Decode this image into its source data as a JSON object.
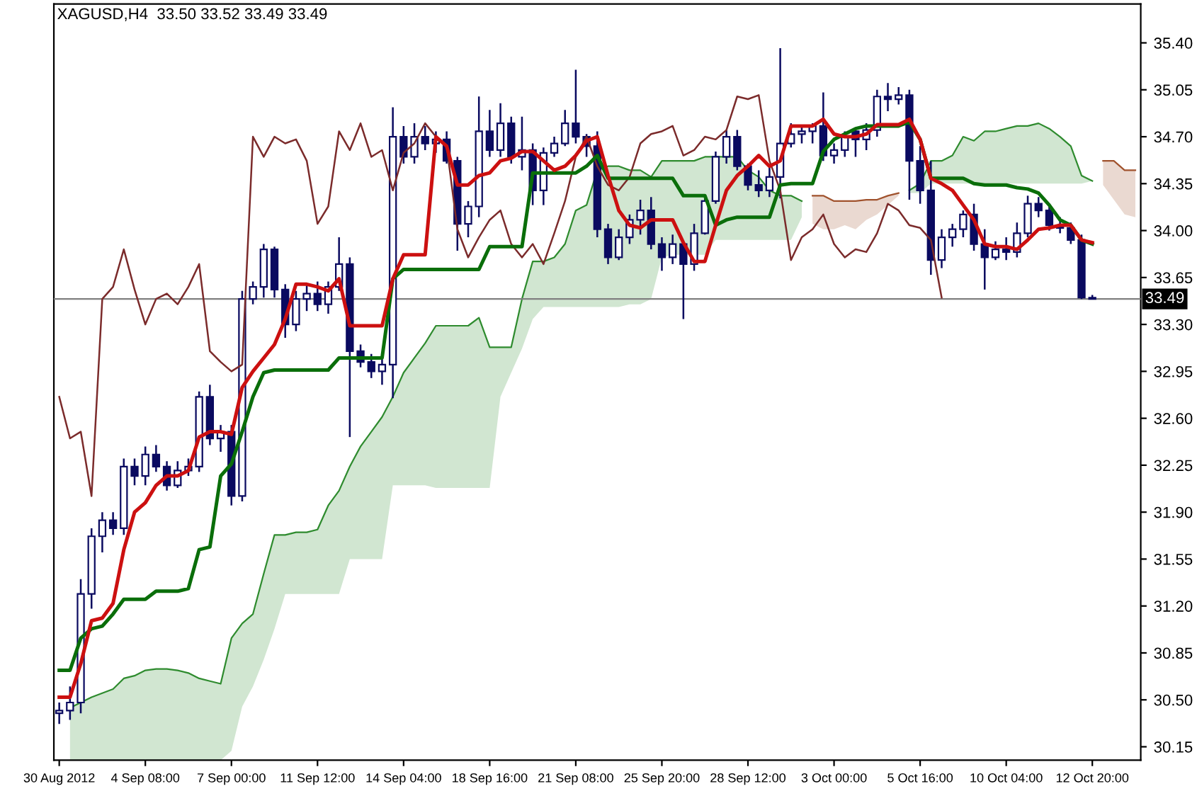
{
  "chart_data": {
    "type": "candlestick",
    "title": "XAGUSD,H4  33.50 33.52 33.49 33.49",
    "categories": [
      "30 Aug 2012",
      null,
      null,
      null,
      null,
      null,
      null,
      null,
      "4 Sep 08:00",
      null,
      null,
      null,
      null,
      null,
      null,
      null,
      "7 Sep 00:00",
      null,
      null,
      null,
      null,
      null,
      null,
      null,
      "11 Sep 12:00",
      null,
      null,
      null,
      null,
      null,
      null,
      null,
      "14 Sep 04:00",
      null,
      null,
      null,
      null,
      null,
      null,
      null,
      "18 Sep 16:00",
      null,
      null,
      null,
      null,
      null,
      null,
      null,
      "21 Sep 08:00",
      null,
      null,
      null,
      null,
      null,
      null,
      null,
      "25 Sep 20:00",
      null,
      null,
      null,
      null,
      null,
      null,
      null,
      "28 Sep 12:00",
      null,
      null,
      null,
      null,
      null,
      null,
      null,
      "3 Oct 00:00",
      null,
      null,
      null,
      null,
      null,
      null,
      null,
      "5 Oct 16:00",
      null,
      null,
      null,
      null,
      null,
      null,
      null,
      "10 Oct 04:00",
      null,
      null,
      null,
      null,
      null,
      null,
      null,
      "12 Oct 20:00",
      null,
      null,
      null,
      null
    ],
    "color": "#0a0a60",
    "ohlc": [
      [
        30.4,
        30.48,
        30.32,
        30.42
      ],
      [
        30.42,
        30.6,
        30.35,
        30.48
      ],
      [
        30.48,
        31.4,
        30.4,
        31.29
      ],
      [
        31.29,
        31.78,
        31.18,
        31.72
      ],
      [
        31.72,
        31.9,
        31.6,
        31.84
      ],
      [
        31.84,
        31.9,
        31.73,
        31.78
      ],
      [
        31.78,
        32.3,
        31.73,
        32.24
      ],
      [
        32.24,
        32.3,
        32.1,
        32.17
      ],
      [
        32.17,
        32.39,
        32.1,
        32.33
      ],
      [
        32.33,
        32.4,
        32.2,
        32.24
      ],
      [
        32.24,
        32.28,
        32.06,
        32.1
      ],
      [
        32.1,
        32.28,
        32.08,
        32.21
      ],
      [
        32.21,
        32.3,
        32.17,
        32.24
      ],
      [
        32.24,
        32.8,
        32.2,
        32.76
      ],
      [
        32.76,
        32.85,
        32.4,
        32.45
      ],
      [
        32.45,
        32.55,
        32.35,
        32.5
      ],
      [
        32.5,
        32.55,
        31.95,
        32.02
      ],
      [
        32.02,
        33.55,
        31.98,
        33.49
      ],
      [
        33.49,
        33.62,
        33.45,
        33.58
      ],
      [
        33.58,
        33.9,
        33.5,
        33.86
      ],
      [
        33.86,
        33.88,
        33.5,
        33.56
      ],
      [
        33.56,
        33.6,
        33.2,
        33.3
      ],
      [
        33.3,
        33.55,
        33.25,
        33.49
      ],
      [
        33.49,
        33.6,
        33.4,
        33.53
      ],
      [
        33.53,
        33.62,
        33.4,
        33.45
      ],
      [
        33.45,
        33.62,
        33.38,
        33.58
      ],
      [
        33.58,
        33.95,
        33.55,
        33.75
      ],
      [
        33.75,
        33.8,
        32.46,
        33.1
      ],
      [
        33.1,
        33.15,
        32.98,
        33.02
      ],
      [
        33.02,
        33.08,
        32.9,
        32.95
      ],
      [
        32.95,
        33.05,
        32.85,
        33.0
      ],
      [
        33.0,
        34.92,
        32.75,
        34.7
      ],
      [
        34.7,
        34.78,
        34.5,
        34.55
      ],
      [
        34.55,
        34.8,
        34.5,
        34.7
      ],
      [
        34.7,
        34.78,
        34.6,
        34.65
      ],
      [
        34.65,
        34.74,
        34.58,
        34.68
      ],
      [
        34.68,
        34.74,
        34.5,
        34.52
      ],
      [
        34.52,
        34.55,
        33.85,
        34.05
      ],
      [
        34.05,
        34.22,
        33.95,
        34.18
      ],
      [
        34.18,
        35.0,
        34.1,
        34.74
      ],
      [
        34.74,
        34.9,
        34.55,
        34.6
      ],
      [
        34.6,
        34.95,
        34.55,
        34.8
      ],
      [
        34.8,
        34.85,
        34.5,
        34.55
      ],
      [
        34.55,
        34.85,
        34.45,
        34.6
      ],
      [
        34.6,
        34.65,
        34.19,
        34.3
      ],
      [
        34.3,
        34.62,
        34.19,
        34.58
      ],
      [
        34.58,
        34.7,
        34.55,
        34.65
      ],
      [
        34.65,
        34.9,
        34.63,
        34.8
      ],
      [
        34.8,
        35.2,
        34.65,
        34.7
      ],
      [
        34.7,
        34.72,
        34.55,
        34.63
      ],
      [
        34.63,
        34.74,
        33.95,
        34.01
      ],
      [
        34.01,
        34.05,
        33.75,
        33.8
      ],
      [
        33.8,
        34.01,
        33.78,
        33.95
      ],
      [
        33.95,
        34.12,
        33.9,
        34.08
      ],
      [
        34.08,
        34.23,
        33.97,
        34.15
      ],
      [
        34.15,
        34.25,
        33.86,
        33.9
      ],
      [
        33.9,
        33.95,
        33.7,
        33.8
      ],
      [
        33.8,
        33.97,
        33.75,
        33.9
      ],
      [
        33.9,
        33.92,
        33.34,
        33.75
      ],
      [
        33.75,
        34.05,
        33.7,
        33.98
      ],
      [
        33.98,
        34.26,
        33.97,
        34.22
      ],
      [
        34.22,
        34.59,
        34.2,
        34.55
      ],
      [
        34.55,
        34.75,
        34.5,
        34.7
      ],
      [
        34.7,
        34.75,
        34.45,
        34.48
      ],
      [
        34.48,
        34.5,
        34.3,
        34.34
      ],
      [
        34.34,
        34.45,
        34.25,
        34.3
      ],
      [
        34.3,
        34.48,
        34.25,
        34.4
      ],
      [
        34.4,
        35.36,
        34.24,
        34.65
      ],
      [
        34.65,
        34.8,
        34.62,
        34.72
      ],
      [
        34.72,
        34.78,
        34.65,
        34.74
      ],
      [
        34.74,
        34.8,
        34.65,
        34.78
      ],
      [
        34.78,
        35.03,
        34.52,
        34.56
      ],
      [
        34.56,
        34.65,
        34.5,
        34.6
      ],
      [
        34.6,
        34.74,
        34.55,
        34.7
      ],
      [
        34.74,
        34.76,
        34.55,
        34.68
      ],
      [
        34.68,
        34.8,
        34.6,
        34.75
      ],
      [
        34.75,
        35.05,
        34.7,
        35.0
      ],
      [
        35.0,
        35.1,
        34.89,
        34.98
      ],
      [
        34.98,
        35.07,
        34.94,
        35.01
      ],
      [
        35.01,
        35.05,
        34.23,
        34.52
      ],
      [
        34.52,
        34.63,
        34.2,
        34.3
      ],
      [
        34.3,
        34.52,
        33.67,
        33.78
      ],
      [
        33.78,
        34.01,
        33.72,
        33.95
      ],
      [
        33.95,
        34.05,
        33.88,
        34.01
      ],
      [
        34.01,
        34.15,
        33.95,
        34.12
      ],
      [
        34.12,
        34.2,
        33.85,
        33.9
      ],
      [
        33.9,
        34.01,
        33.56,
        33.8
      ],
      [
        33.8,
        33.92,
        33.78,
        33.86
      ],
      [
        33.86,
        33.95,
        33.78,
        33.84
      ],
      [
        33.84,
        34.06,
        33.8,
        33.98
      ],
      [
        33.98,
        34.26,
        33.95,
        34.2
      ],
      [
        34.2,
        34.25,
        34.1,
        34.15
      ],
      [
        34.15,
        34.2,
        34.0,
        34.04
      ],
      [
        34.04,
        34.1,
        33.98,
        34.02
      ],
      [
        34.02,
        34.06,
        33.9,
        33.93
      ],
      [
        33.93,
        33.97,
        33.49,
        33.5
      ],
      [
        33.5,
        33.52,
        33.49,
        33.49
      ],
      null,
      null,
      null,
      null
    ],
    "series": [
      {
        "type": "line",
        "color": "#2e8b2e",
        "upper": [
          null,
          30.44,
          30.48,
          30.52,
          30.55,
          30.58,
          30.66,
          30.68,
          30.72,
          30.73,
          30.73,
          30.72,
          30.7,
          30.66,
          30.64,
          30.62,
          30.96,
          31.07,
          31.14,
          31.44,
          31.73,
          31.73,
          31.75,
          31.75,
          31.77,
          31.95,
          32.06,
          32.24,
          32.39,
          32.5,
          32.61,
          32.76,
          32.94,
          33.05,
          33.16,
          33.29,
          33.29,
          33.29,
          33.29,
          33.35,
          33.13,
          33.13,
          33.13,
          33.49,
          33.77,
          33.77,
          33.8,
          33.9,
          34.15,
          34.19,
          34.45,
          34.48,
          34.48,
          34.45,
          34.45,
          34.4,
          34.52,
          34.52,
          34.52,
          34.52,
          34.55,
          34.55,
          34.55,
          34.55,
          34.45,
          34.4,
          34.3,
          34.26,
          34.26,
          34.22,
          null,
          null,
          null,
          null,
          null,
          null,
          null,
          null,
          null,
          34.3,
          34.35,
          34.52,
          34.52,
          34.56,
          34.7,
          34.67,
          34.74,
          34.74,
          34.76,
          34.78,
          34.78,
          34.8,
          34.76,
          34.7,
          34.63,
          34.41,
          34.37,
          null,
          null,
          null,
          null
        ],
        "values": [
          null,
          30.44,
          30.48,
          30.52,
          30.55,
          30.58,
          30.66,
          30.68,
          30.72,
          30.73,
          30.73,
          30.72,
          30.7,
          30.66,
          30.64,
          30.62,
          30.96,
          31.07,
          31.14,
          31.44,
          31.73,
          31.73,
          31.75,
          31.75,
          31.77,
          31.95,
          32.06,
          32.24,
          32.39,
          32.5,
          32.61,
          32.76,
          32.94,
          33.05,
          33.16,
          33.29,
          33.29,
          33.29,
          33.29,
          33.35,
          33.13,
          33.13,
          33.13,
          33.49,
          33.77,
          33.77,
          33.8,
          33.9,
          34.15,
          34.19,
          34.45,
          34.48,
          34.48,
          34.45,
          34.45,
          34.4,
          34.52,
          34.52,
          34.52,
          34.52,
          34.55,
          34.55,
          34.55,
          34.55,
          34.45,
          34.4,
          34.3,
          34.26,
          34.26,
          34.22,
          null,
          null,
          null,
          null,
          null,
          null,
          null,
          null,
          null,
          34.3,
          34.35,
          34.52,
          34.52,
          34.56,
          34.7,
          34.67,
          34.74,
          34.74,
          34.76,
          34.78,
          34.78,
          34.8,
          34.76,
          34.7,
          34.63,
          34.41,
          34.37,
          null,
          null,
          null,
          null
        ],
        "lower": [
          null,
          30.05,
          30.05,
          30.05,
          30.05,
          30.05,
          30.05,
          30.05,
          30.05,
          30.05,
          30.05,
          30.05,
          30.05,
          30.05,
          30.05,
          30.05,
          30.12,
          30.45,
          30.6,
          30.8,
          31.03,
          31.29,
          31.29,
          31.29,
          31.29,
          31.29,
          31.29,
          31.55,
          31.55,
          31.55,
          31.55,
          32.1,
          32.1,
          32.1,
          32.1,
          32.08,
          32.08,
          32.08,
          32.08,
          32.08,
          32.08,
          32.76,
          32.94,
          33.12,
          33.34,
          33.43,
          33.43,
          33.43,
          33.43,
          33.43,
          33.43,
          33.43,
          33.43,
          33.45,
          33.45,
          33.49,
          33.8,
          33.82,
          33.82,
          33.82,
          33.82,
          33.93,
          33.93,
          33.93,
          33.93,
          33.93,
          33.93,
          33.93,
          33.93,
          34.1,
          null,
          null,
          null,
          null,
          null,
          null,
          null,
          null,
          null,
          34.28,
          34.28,
          34.35,
          34.35,
          34.35,
          34.35,
          34.35,
          34.35,
          34.35,
          34.35,
          34.35,
          34.35,
          34.35,
          34.35,
          34.35,
          34.35,
          34.35,
          34.37,
          null,
          null,
          null,
          null
        ]
      },
      {
        "type": "line",
        "color": "#a0522d",
        "upper": [
          null,
          null,
          null,
          null,
          null,
          null,
          null,
          null,
          null,
          null,
          null,
          null,
          null,
          null,
          null,
          null,
          null,
          null,
          null,
          null,
          null,
          null,
          null,
          null,
          null,
          null,
          null,
          null,
          null,
          null,
          null,
          null,
          null,
          null,
          null,
          null,
          null,
          null,
          null,
          null,
          null,
          null,
          null,
          null,
          null,
          null,
          null,
          null,
          null,
          null,
          null,
          null,
          null,
          null,
          null,
          null,
          null,
          null,
          null,
          null,
          null,
          null,
          null,
          null,
          null,
          null,
          null,
          null,
          null,
          null,
          34.26,
          34.26,
          34.22,
          34.22,
          34.22,
          34.23,
          34.23,
          34.26,
          34.28,
          null,
          null,
          null,
          null,
          null,
          null,
          null,
          null,
          null,
          null,
          null,
          null,
          null,
          null,
          null,
          null,
          null,
          null,
          34.52,
          34.52,
          34.45,
          34.45
        ],
        "values": [
          null,
          null,
          null,
          null,
          null,
          null,
          null,
          null,
          null,
          null,
          null,
          null,
          null,
          null,
          null,
          null,
          null,
          null,
          null,
          null,
          null,
          null,
          null,
          null,
          null,
          null,
          null,
          null,
          null,
          null,
          null,
          null,
          null,
          null,
          null,
          null,
          null,
          null,
          null,
          null,
          null,
          null,
          null,
          null,
          null,
          null,
          null,
          null,
          null,
          null,
          null,
          null,
          null,
          null,
          null,
          null,
          null,
          null,
          null,
          null,
          null,
          null,
          null,
          null,
          null,
          null,
          null,
          null,
          null,
          null,
          34.26,
          34.26,
          34.22,
          34.22,
          34.22,
          34.23,
          34.23,
          34.26,
          34.28,
          null,
          null,
          null,
          null,
          null,
          null,
          null,
          null,
          null,
          null,
          null,
          null,
          null,
          null,
          null,
          null,
          null,
          null,
          34.52,
          34.52,
          34.45,
          34.45
        ],
        "lower": [
          null,
          null,
          null,
          null,
          null,
          null,
          null,
          null,
          null,
          null,
          null,
          null,
          null,
          null,
          null,
          null,
          null,
          null,
          null,
          null,
          null,
          null,
          null,
          null,
          null,
          null,
          null,
          null,
          null,
          null,
          null,
          null,
          null,
          null,
          null,
          null,
          null,
          null,
          null,
          null,
          null,
          null,
          null,
          null,
          null,
          null,
          null,
          null,
          null,
          null,
          null,
          null,
          null,
          null,
          null,
          null,
          null,
          null,
          null,
          null,
          null,
          null,
          null,
          null,
          null,
          null,
          null,
          null,
          null,
          null,
          34.05,
          34.01,
          34.01,
          34.04,
          34.01,
          34.08,
          34.12,
          34.19,
          34.26,
          null,
          null,
          null,
          null,
          null,
          null,
          null,
          null,
          null,
          null,
          null,
          null,
          null,
          null,
          null,
          null,
          null,
          null,
          34.34,
          34.23,
          34.12,
          34.1
        ]
      },
      {
        "type": "line",
        "color": "#7b2b2b",
        "values": [
          32.76,
          32.45,
          32.5,
          32.02,
          33.49,
          33.58,
          33.86,
          33.56,
          33.3,
          33.49,
          33.53,
          33.45,
          33.58,
          33.75,
          33.1,
          33.02,
          32.95,
          33.0,
          34.7,
          34.55,
          34.7,
          34.65,
          34.68,
          34.52,
          34.05,
          34.18,
          34.74,
          34.6,
          34.8,
          34.55,
          34.6,
          34.3,
          34.58,
          34.65,
          34.8,
          34.7,
          34.63,
          34.01,
          33.8,
          33.95,
          34.08,
          34.15,
          33.9,
          33.8,
          33.9,
          33.75,
          33.98,
          34.22,
          34.55,
          34.7,
          34.48,
          34.34,
          34.3,
          34.4,
          34.65,
          34.72,
          34.74,
          34.78,
          34.56,
          34.6,
          34.7,
          34.68,
          34.75,
          35.0,
          34.98,
          35.01,
          34.52,
          34.3,
          33.78,
          33.95,
          34.01,
          34.12,
          33.9,
          33.8,
          33.86,
          33.84,
          33.98,
          34.2,
          34.15,
          34.04,
          34.02,
          33.93,
          33.5,
          null,
          null,
          null,
          null,
          null,
          null,
          null,
          null,
          null,
          null,
          null,
          null,
          null,
          null,
          null,
          null,
          null,
          null
        ]
      },
      {
        "type": "line",
        "color": "#0a6e0a",
        "values": [
          30.72,
          30.72,
          30.96,
          31.03,
          31.05,
          31.14,
          31.25,
          31.25,
          31.25,
          31.31,
          31.31,
          31.31,
          31.33,
          31.62,
          31.64,
          32.17,
          32.26,
          32.5,
          32.76,
          32.94,
          32.96,
          32.96,
          32.96,
          32.96,
          32.96,
          32.96,
          33.05,
          33.05,
          33.05,
          33.05,
          33.05,
          33.64,
          33.71,
          33.71,
          33.71,
          33.71,
          33.71,
          33.71,
          33.71,
          33.71,
          33.88,
          33.88,
          33.88,
          33.88,
          34.43,
          34.43,
          34.43,
          34.43,
          34.43,
          34.48,
          34.56,
          34.39,
          34.39,
          34.39,
          34.39,
          34.39,
          34.39,
          34.39,
          34.26,
          34.26,
          34.26,
          34.04,
          34.08,
          34.1,
          34.1,
          34.1,
          34.1,
          34.34,
          34.35,
          34.35,
          34.35,
          34.59,
          34.68,
          34.72,
          34.76,
          34.78,
          34.78,
          34.78,
          34.78,
          34.81,
          34.68,
          34.39,
          34.39,
          34.39,
          34.39,
          34.35,
          34.34,
          34.34,
          34.34,
          34.32,
          34.31,
          34.28,
          34.19,
          34.08,
          34.04,
          33.93,
          33.9,
          null,
          null,
          null,
          null
        ]
      },
      {
        "type": "line",
        "color": "#cc1010",
        "values": [
          30.52,
          30.52,
          30.77,
          31.09,
          31.11,
          31.22,
          31.62,
          31.9,
          31.97,
          32.1,
          32.17,
          32.17,
          32.21,
          32.46,
          32.5,
          32.5,
          32.48,
          32.83,
          32.95,
          33.05,
          33.15,
          33.34,
          33.6,
          33.6,
          33.58,
          33.55,
          33.64,
          33.29,
          33.29,
          33.29,
          33.29,
          33.64,
          33.82,
          33.82,
          33.82,
          34.7,
          34.63,
          34.34,
          34.34,
          34.41,
          34.43,
          34.52,
          34.54,
          34.59,
          34.59,
          34.52,
          34.45,
          34.48,
          34.56,
          34.67,
          34.7,
          34.41,
          34.15,
          34.04,
          34.02,
          34.08,
          34.08,
          34.08,
          33.91,
          33.77,
          33.77,
          34.04,
          34.3,
          34.41,
          34.48,
          34.56,
          34.48,
          34.52,
          34.78,
          34.78,
          34.78,
          34.83,
          34.72,
          34.7,
          34.7,
          34.72,
          34.79,
          34.79,
          34.79,
          34.83,
          34.68,
          34.39,
          34.35,
          34.3,
          34.19,
          34.08,
          33.9,
          33.88,
          33.88,
          33.86,
          33.93,
          34.01,
          34.02,
          34.04,
          34.04,
          33.93,
          33.91,
          null,
          null,
          null,
          null
        ]
      }
    ],
    "ylim": [
      30.05,
      35.69
    ],
    "yticks": [
      {
        "value": 30.15,
        "label": "30.15"
      },
      {
        "value": 30.5,
        "label": "30.50"
      },
      {
        "value": 30.85,
        "label": "30.85"
      },
      {
        "value": 31.2,
        "label": "31.20"
      },
      {
        "value": 31.55,
        "label": "31.55"
      },
      {
        "value": 31.9,
        "label": "31.90"
      },
      {
        "value": 32.25,
        "label": "32.25"
      },
      {
        "value": 32.6,
        "label": "32.60"
      },
      {
        "value": 32.95,
        "label": "32.95"
      },
      {
        "value": 33.3,
        "label": "33.30"
      },
      {
        "value": 33.65,
        "label": "33.65"
      },
      {
        "value": 34.0,
        "label": "34.00"
      },
      {
        "value": 34.35,
        "label": "34.35"
      },
      {
        "value": 34.7,
        "label": "34.70"
      },
      {
        "value": 35.05,
        "label": "35.05"
      },
      {
        "value": 35.4,
        "label": "35.40"
      }
    ],
    "ref_lines": [
      {
        "axis": "y",
        "value": 33.49,
        "label": "33.49",
        "color": "#808080"
      }
    ],
    "grid": false
  }
}
